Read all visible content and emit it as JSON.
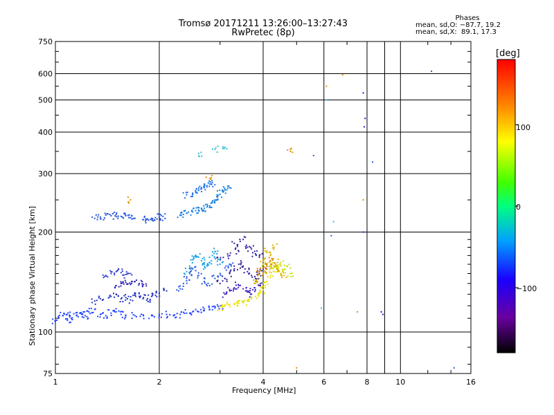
{
  "chart_data": {
    "type": "scatter",
    "title_line1": "Tromsø 20171211 13:26:00–13:27:43",
    "title_line2": "RwPretec (8p)",
    "xlabel": "Frequency [MHz]",
    "ylabel": "Stationary phase Virtual Height [km]",
    "x_scale": "log",
    "y_scale": "log",
    "xlim": [
      1,
      16
    ],
    "ylim": [
      75,
      750
    ],
    "x_ticks": [
      "1",
      "2",
      "4",
      "6",
      "8",
      "10",
      "16"
    ],
    "y_ticks": [
      "750",
      "600",
      "500",
      "400",
      "300",
      "200",
      "100",
      "75"
    ],
    "x_tick_values": [
      1,
      2,
      4,
      6,
      8,
      10,
      16
    ],
    "y_tick_values": [
      750,
      600,
      500,
      400,
      300,
      200,
      100,
      75
    ],
    "grid": true,
    "phases": {
      "heading": "Phases",
      "o_line": "mean, sd,O: −87.7, 19.2",
      "x_line": "mean, sd,X:  89.1, 17.3"
    },
    "colorbar": {
      "unit": "[deg]",
      "ticks": [
        "100",
        "0",
        "−100"
      ],
      "tick_values": [
        100,
        0,
        -100
      ],
      "range": [
        -180,
        180
      ]
    },
    "series": [
      {
        "color": "#1e40ff",
        "x": [
          1.0,
          1.02,
          1.05,
          1.08,
          1.1,
          1.12,
          1.15,
          1.18,
          1.2,
          1.22,
          1.25,
          1.3,
          1.35,
          1.4,
          1.45,
          1.5,
          1.55,
          1.6,
          1.7,
          1.8,
          1.9,
          2.0,
          2.1,
          2.2,
          2.3,
          2.4,
          2.5,
          2.6,
          2.7,
          2.8,
          2.9,
          3.0
        ],
        "y": [
          108,
          110,
          112,
          113,
          111,
          109,
          112,
          114,
          113,
          112,
          115,
          117,
          113,
          112,
          114,
          115,
          113,
          112,
          112,
          112,
          112,
          113,
          113,
          112,
          113,
          114,
          115,
          115,
          116,
          117,
          118,
          120
        ]
      },
      {
        "color": "#2030c0",
        "x": [
          1.3,
          1.35,
          1.45,
          1.5,
          1.55,
          1.6,
          1.65,
          1.7,
          1.75,
          1.8,
          1.85,
          1.9,
          1.95,
          2.0,
          2.1
        ],
        "y": [
          124,
          126,
          128,
          130,
          126,
          127,
          125,
          129,
          128,
          127,
          126,
          128,
          129,
          131,
          133
        ]
      },
      {
        "color": "#2a20b0",
        "x": [
          1.5,
          1.55,
          1.6,
          1.65,
          1.7,
          1.75,
          1.8
        ],
        "y": [
          138,
          140,
          141,
          139,
          142,
          140,
          139
        ]
      },
      {
        "color": "#3040d0",
        "x": [
          1.4,
          1.45,
          1.5,
          1.55,
          1.6,
          1.65
        ],
        "y": [
          148,
          150,
          152,
          151,
          149,
          150
        ]
      },
      {
        "color": "#2050e0",
        "x": [
          1.3,
          1.35,
          1.4,
          1.45,
          1.5,
          1.55,
          1.6,
          1.65,
          1.7,
          1.8,
          1.85,
          1.9,
          1.95,
          2.0,
          2.05
        ],
        "y": [
          220,
          222,
          225,
          224,
          226,
          223,
          224,
          221,
          220,
          218,
          219,
          220,
          221,
          222,
          223
        ]
      },
      {
        "color": "#1a80e0",
        "x": [
          2.3,
          2.35,
          2.4,
          2.5,
          2.55,
          2.6,
          2.65,
          2.7,
          2.75,
          2.8,
          2.85,
          2.9,
          2.95,
          3.0,
          3.05,
          3.1,
          3.2
        ],
        "y": [
          225,
          226,
          228,
          230,
          232,
          233,
          235,
          236,
          238,
          240,
          245,
          250,
          255,
          260,
          265,
          268,
          272
        ]
      },
      {
        "color": "#2070e8",
        "x": [
          2.4,
          2.5,
          2.55,
          2.6,
          2.65,
          2.7,
          2.75,
          2.8,
          2.85
        ],
        "y": [
          259,
          262,
          265,
          268,
          270,
          274,
          276,
          279,
          282
        ]
      },
      {
        "color": "#18a0e0",
        "x": [
          2.4,
          2.45,
          2.5,
          2.55,
          2.6,
          2.65,
          2.7,
          2.75,
          2.8,
          2.85,
          2.9,
          2.95,
          3.0
        ],
        "y": [
          152,
          158,
          165,
          170,
          168,
          164,
          160,
          158,
          162,
          170,
          175,
          168,
          160
        ]
      },
      {
        "color": "#2458e0",
        "x": [
          2.3,
          2.35,
          2.4,
          2.45,
          2.5,
          2.6,
          2.7,
          2.8,
          2.9,
          3.0,
          3.1,
          3.2
        ],
        "y": [
          135,
          140,
          145,
          150,
          155,
          148,
          142,
          138,
          145,
          150,
          156,
          160
        ]
      },
      {
        "color": "#3020a0",
        "x": [
          3.0,
          3.1,
          3.2,
          3.3,
          3.4,
          3.5,
          3.6,
          3.7,
          3.8,
          3.9,
          4.0,
          3.2,
          3.4,
          3.6,
          3.8,
          3.0,
          3.3,
          3.5,
          3.7,
          3.9
        ],
        "y": [
          140,
          145,
          150,
          155,
          160,
          158,
          152,
          148,
          145,
          150,
          155,
          170,
          175,
          180,
          172,
          165,
          185,
          190,
          178,
          168
        ]
      },
      {
        "color": "#4020c0",
        "x": [
          3.1,
          3.2,
          3.3,
          3.4,
          3.5,
          3.6,
          3.7,
          3.8,
          3.9
        ],
        "y": [
          130,
          133,
          136,
          138,
          135,
          132,
          130,
          134,
          138
        ]
      },
      {
        "color": "#e8e000",
        "x": [
          3.0,
          3.1,
          3.2,
          3.3,
          3.4,
          3.5,
          3.6,
          3.7,
          3.8,
          3.9,
          4.0,
          4.05,
          4.1,
          4.2,
          4.3,
          4.4
        ],
        "y": [
          119,
          120,
          121,
          121,
          122,
          123,
          124,
          126,
          128,
          131,
          134,
          138,
          142,
          148,
          152,
          155
        ]
      },
      {
        "color": "#e0b000",
        "x": [
          3.8,
          3.9,
          4.0,
          4.1,
          4.2,
          4.3,
          4.4,
          4.5,
          4.6,
          4.0,
          4.2,
          4.4,
          4.1,
          4.3
        ],
        "y": [
          140,
          145,
          150,
          155,
          160,
          158,
          154,
          150,
          148,
          165,
          170,
          162,
          175,
          180
        ]
      },
      {
        "color": "#c8e000",
        "x": [
          4.0,
          4.2,
          4.4,
          4.6,
          4.8,
          4.5,
          4.7
        ],
        "y": [
          160,
          158,
          156,
          154,
          150,
          162,
          158
        ]
      },
      {
        "color": "#e08000",
        "x": [
          3.9,
          4.0,
          4.1,
          4.2
        ],
        "y": [
          152,
          156,
          160,
          164
        ]
      },
      {
        "color": "#2060e0",
        "x": [
          5.6,
          6.3,
          8.3,
          12.3,
          14.3
        ],
        "y": [
          340,
          195,
          325,
          610,
          78
        ]
      },
      {
        "color": "#1a1ae0",
        "x": [
          7.8,
          7.9,
          7.85,
          7.8,
          8.8,
          8.9
        ],
        "y": [
          525,
          440,
          415,
          200,
          115,
          113
        ]
      },
      {
        "color": "#e09000",
        "x": [
          5.0,
          6.1,
          7.8,
          6.8,
          2.8,
          1.65,
          4.8,
          7.5
        ],
        "y": [
          78,
          550,
          250,
          595,
          290,
          250,
          350,
          115
        ]
      },
      {
        "color": "#40b0f0",
        "x": [
          6.1,
          6.4,
          5.9
        ],
        "y": [
          500,
          215,
          118
        ]
      },
      {
        "color": "#30c0d0",
        "x": [
          2.9,
          3.1,
          2.6
        ],
        "y": [
          355,
          360,
          345
        ]
      }
    ]
  }
}
